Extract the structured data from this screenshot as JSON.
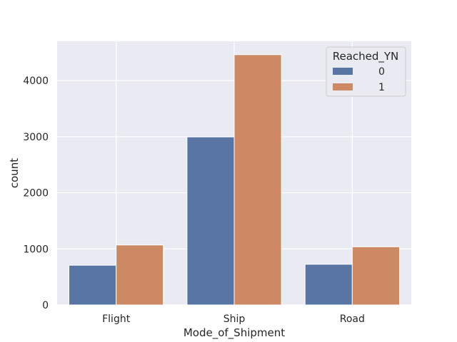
{
  "chart_data": {
    "type": "bar",
    "title": "",
    "xlabel": "Mode_of_Shipment",
    "ylabel": "count",
    "categories": [
      "Flight",
      "Ship",
      "Road"
    ],
    "series": [
      {
        "name": "0",
        "values": [
          708,
          2996,
          725
        ],
        "color": "#5875a4"
      },
      {
        "name": "1",
        "values": [
          1069,
          4462,
          1037
        ],
        "color": "#cc8963"
      }
    ],
    "ylim": [
      0,
      4700
    ],
    "yticks": [
      0,
      1000,
      2000,
      3000,
      4000
    ],
    "grid": true,
    "legend": {
      "title": "Reached_YN",
      "position": "top-right"
    },
    "background_color": "#eaeaf2",
    "grid_color": "#ffffff"
  }
}
